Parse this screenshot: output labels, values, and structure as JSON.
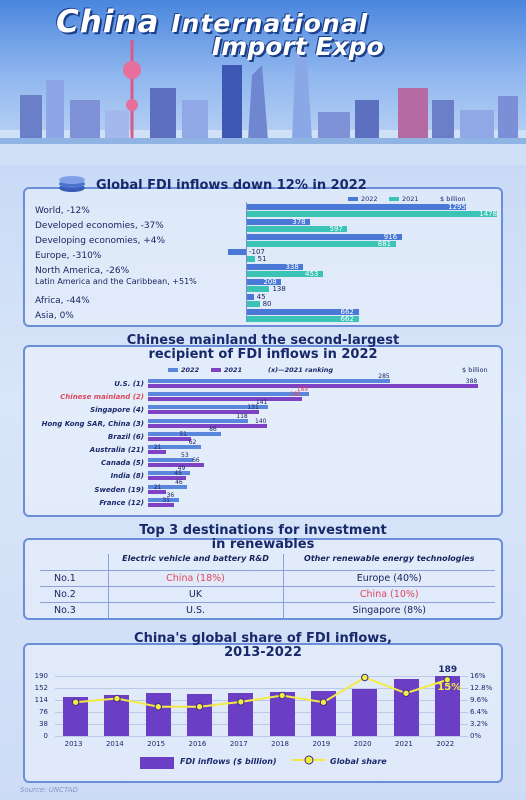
{
  "header": {
    "title_line1": "China",
    "title_line1b": "International",
    "title_line2": "Import Expo"
  },
  "section1": {
    "title": "Global FDI inflows down 12% in 2022",
    "legend_2022": "2022",
    "legend_2021": "2021",
    "unit": "$ billion",
    "colors": {
      "y2022": "#4a78d6",
      "y2021": "#3bc3b6"
    }
  },
  "section2": {
    "title_line1": "Chinese mainland the second-largest",
    "title_line2": "recipient of FDI inflows in 2022",
    "legend_2022": "2022",
    "legend_2021": "2021",
    "legend_note": "(x)—2021 ranking",
    "unit": "$ billion",
    "colors": {
      "y2022": "#5a86dc",
      "y2021": "#7d43c4",
      "highlight": "#e0475f"
    }
  },
  "section3": {
    "title_line1": "Top 3 destinations for investment",
    "title_line2": "in renewables",
    "col1": "Electric vehicle and battery R&D",
    "col2": "Other renewable energy technologies",
    "rows": [
      {
        "rank": "No.1",
        "a": "China (18%)",
        "b": "Europe (40%)",
        "a_hl": true,
        "b_hl": false
      },
      {
        "rank": "No.2",
        "a": "UK",
        "b": "China (10%)",
        "a_hl": false,
        "b_hl": true
      },
      {
        "rank": "No.3",
        "a": "U.S.",
        "b": "Singapore (8%)",
        "a_hl": false,
        "b_hl": false
      }
    ]
  },
  "section4": {
    "title_line1": "China's global share of FDI inflows,",
    "title_line2": "2013-2022",
    "top_value": "189",
    "top_share": "15%",
    "legend_bar": "FDI inflows ($ billion)",
    "legend_line": "Global share",
    "colors": {
      "bar": "#6a3fc6",
      "line": "#f3ea43"
    }
  },
  "source": "Source: UNCTAD",
  "chart_data": [
    {
      "type": "bar",
      "title": "Global FDI inflows down 12% in 2022",
      "unit": "$ billion",
      "categories": [
        "World, -12%",
        "Developed economies, -37%",
        "Developing economies, +4%",
        "Europe, -310%",
        "North America, -26%",
        "Latin America and the Caribbean, +51%",
        "Africa, -44%",
        "Asia, 0%"
      ],
      "series": [
        {
          "name": "2022",
          "values": [
            1295,
            378,
            916,
            -107,
            338,
            208,
            45,
            662
          ]
        },
        {
          "name": "2021",
          "values": [
            1478,
            597,
            881,
            51,
            453,
            138,
            80,
            662
          ]
        }
      ]
    },
    {
      "type": "bar",
      "title": "Chinese mainland the second-largest recipient of FDI inflows in 2022",
      "unit": "$ billion",
      "categories": [
        "U.S. (1)",
        "Chinese mainland (2)",
        "Singapore (4)",
        "Hong Kong SAR, China (3)",
        "Brazil (6)",
        "Australia (21)",
        "Canada (5)",
        "India (8)",
        "Sweden (19)",
        "France (12)"
      ],
      "series": [
        {
          "name": "2022",
          "values": [
            285,
            189,
            141,
            118,
            86,
            62,
            53,
            49,
            46,
            36
          ]
        },
        {
          "name": "2021",
          "values": [
            388,
            181,
            131,
            140,
            51,
            21,
            66,
            45,
            21,
            31
          ]
        }
      ]
    },
    {
      "type": "bar",
      "title": "China's global share of FDI inflows, 2013-2022",
      "categories": [
        "2013",
        "2014",
        "2015",
        "2016",
        "2017",
        "2018",
        "2019",
        "2020",
        "2021",
        "2022"
      ],
      "series": [
        {
          "name": "FDI inflows ($ billion)",
          "values": [
            124,
            129,
            136,
            134,
            136,
            138,
            141,
            149,
            181,
            189
          ]
        },
        {
          "name": "Global share",
          "values": [
            9.0,
            10.0,
            7.8,
            7.8,
            9.1,
            10.8,
            9.0,
            15.6,
            11.4,
            15
          ]
        }
      ],
      "y_ticks_left": [
        "190",
        "152",
        "114",
        "76",
        "38",
        "0"
      ],
      "y_ticks_right": [
        "16%",
        "12.8%",
        "9.6%",
        "6.4%",
        "3.2%",
        "0%"
      ],
      "ylim_left": [
        0,
        190
      ],
      "ylim_right": [
        0,
        16
      ]
    }
  ]
}
